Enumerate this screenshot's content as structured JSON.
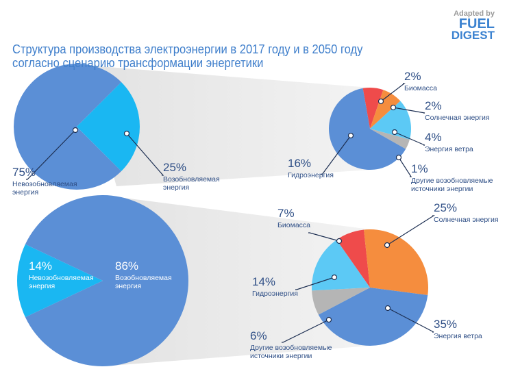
{
  "title": "Структура производства электроэнергии в 2017 году и в 2050 году согласно сценарию трансформации энергетики",
  "logo": {
    "caption": "Adapted by",
    "line1": "FUEL",
    "line2": "DIGEST"
  },
  "chart_data": [
    {
      "type": "pie",
      "categories": [
        "Невозобновляемая энергия",
        "Возобновляемая энергия"
      ],
      "values": [
        75,
        25
      ],
      "value_labels": [
        "75%",
        "25%"
      ],
      "colors": [
        "#5b8fd6",
        "#1ab7f2"
      ]
    },
    {
      "type": "pie",
      "categories": [
        "Биомасса",
        "Солнечная энергия",
        "Энергия ветра",
        "Другие возобновляемые источники энергии",
        "Гидроэнергия"
      ],
      "values": [
        2,
        2,
        4,
        1,
        16
      ],
      "value_labels": [
        "2%",
        "2%",
        "4%",
        "1%",
        "16%"
      ],
      "colors": [
        "#ef4b4b",
        "#f58d3e",
        "#5cc9f5",
        "#b5b5b5",
        "#5b8fd6"
      ]
    },
    {
      "type": "pie",
      "categories": [
        "Невозобновляемая энергия",
        "Возобновляемая энергия"
      ],
      "values": [
        14,
        86
      ],
      "value_labels": [
        "14%",
        "86%"
      ],
      "colors": [
        "#1ab7f2",
        "#5b8fd6"
      ]
    },
    {
      "type": "pie",
      "categories": [
        "Биомасса",
        "Солнечная энергия",
        "Энергия ветра",
        "Другие возобновляемые источники энергии",
        "Гидроэнергия"
      ],
      "values": [
        7,
        25,
        35,
        6,
        14
      ],
      "value_labels": [
        "7%",
        "25%",
        "35%",
        "6%",
        "14%"
      ],
      "colors": [
        "#ef4b4b",
        "#f58d3e",
        "#5b8fd6",
        "#b5b5b5",
        "#5cc9f5"
      ]
    }
  ]
}
